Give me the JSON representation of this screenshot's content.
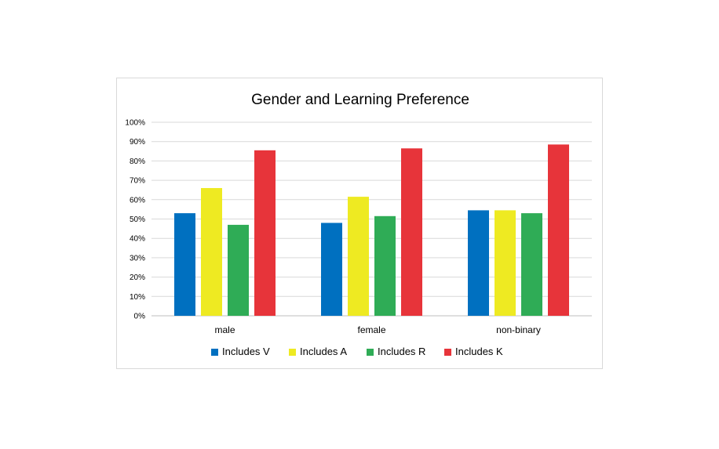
{
  "chart_data": {
    "type": "bar",
    "title": "Gender and Learning Preference",
    "xlabel": "",
    "ylabel": "",
    "categories": [
      "male",
      "female",
      "non-binary"
    ],
    "series": [
      {
        "name": "Includes V",
        "color": "#0070c0",
        "values": [
          0.53,
          0.48,
          0.545
        ]
      },
      {
        "name": "Includes A",
        "color": "#eeea22",
        "values": [
          0.66,
          0.615,
          0.545
        ]
      },
      {
        "name": "Includes R",
        "color": "#2fac56",
        "values": [
          0.47,
          0.515,
          0.53
        ]
      },
      {
        "name": "Includes K",
        "color": "#e7343a",
        "values": [
          0.855,
          0.865,
          0.885
        ]
      }
    ],
    "ylim": [
      0,
      1
    ],
    "yticks": [
      "0%",
      "10%",
      "20%",
      "30%",
      "40%",
      "50%",
      "60%",
      "70%",
      "80%",
      "90%",
      "100%"
    ],
    "grid": true,
    "legend_position": "bottom"
  }
}
